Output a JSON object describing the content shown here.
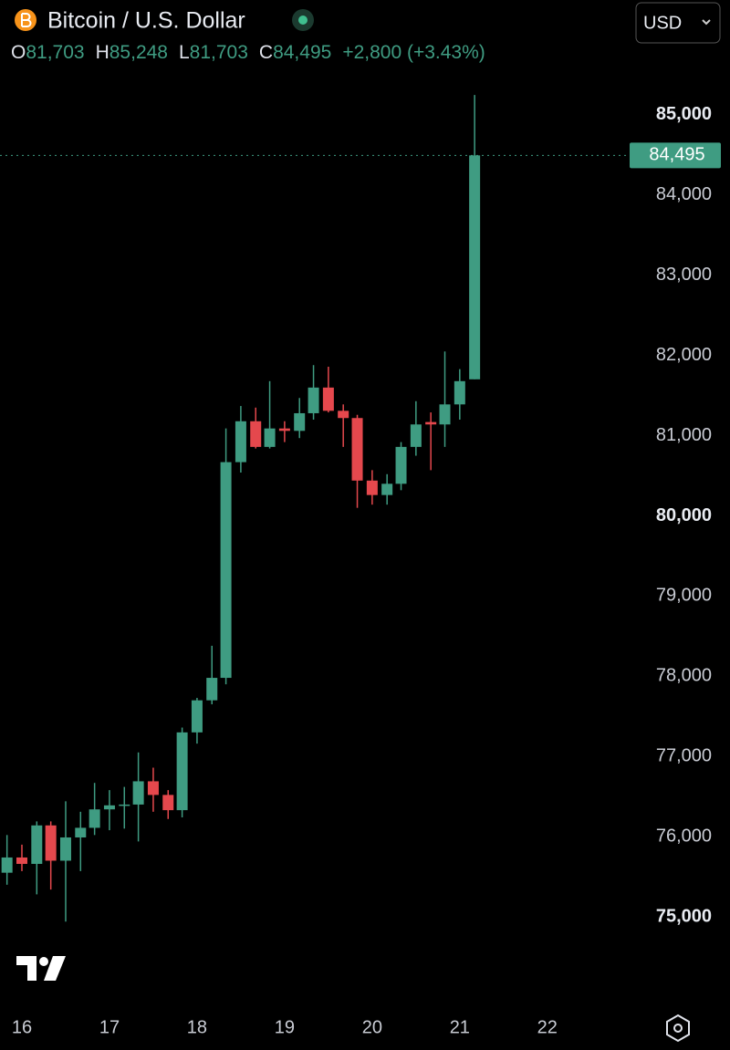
{
  "chart_data": {
    "type": "candlestick",
    "title": "Bitcoin / U.S. Dollar",
    "currency": "USD",
    "ohlc_header": [
      {
        "label": "O",
        "value": "81,703"
      },
      {
        "label": "H",
        "value": "85,248"
      },
      {
        "label": "L",
        "value": "81,703"
      },
      {
        "label": "C",
        "value": "84,495"
      }
    ],
    "change": "+2,800 (+3.43%)",
    "up_color": "#3f9c82",
    "down_color": "#e5484d",
    "x": [
      15.83,
      16,
      16.17,
      16.33,
      16.5,
      16.67,
      16.83,
      17,
      17.17,
      17.33,
      17.5,
      17.67,
      17.83,
      18,
      18.17,
      18.33,
      18.5,
      18.67,
      18.83,
      19,
      19.17,
      19.33,
      19.5,
      19.67,
      19.83,
      20,
      20.17,
      20.33,
      20.5,
      20.67,
      20.83,
      21,
      21.17
    ],
    "open": [
      75550,
      75740,
      75660,
      76140,
      75700,
      75990,
      76110,
      76340,
      76390,
      76400,
      76690,
      76520,
      76330,
      77300,
      77700,
      77980,
      80670,
      81180,
      80860,
      81090,
      81060,
      81280,
      81600,
      81310,
      81220,
      80440,
      80260,
      80400,
      80860,
      81170,
      81140,
      81390,
      81703
    ],
    "high": [
      76020,
      75900,
      76190,
      76190,
      76440,
      76310,
      76670,
      76580,
      76620,
      77050,
      76860,
      76580,
      77360,
      77730,
      78380,
      81090,
      81370,
      81350,
      81680,
      81180,
      81470,
      81880,
      81860,
      81390,
      81260,
      80570,
      80520,
      80920,
      81430,
      81290,
      82050,
      81830,
      85248
    ],
    "low": [
      75400,
      75570,
      75280,
      75340,
      74940,
      75570,
      76020,
      76080,
      76100,
      75940,
      76310,
      76220,
      76240,
      77160,
      77650,
      77900,
      80540,
      80840,
      80840,
      80920,
      80970,
      81200,
      81290,
      80860,
      80100,
      80140,
      80140,
      80320,
      80750,
      80570,
      80860,
      81200,
      81703
    ],
    "close": [
      75740,
      75660,
      76140,
      75700,
      75990,
      76110,
      76340,
      76390,
      76400,
      76690,
      76520,
      76330,
      77300,
      77700,
      77980,
      80670,
      81180,
      80860,
      81090,
      81060,
      81280,
      81600,
      81310,
      81220,
      80440,
      80260,
      80400,
      80860,
      81140,
      81140,
      81390,
      81680,
      84495
    ],
    "price_line": {
      "value": 84495,
      "label": "84,495"
    },
    "xlim": [
      15.75,
      22.94
    ],
    "xticks": [
      16,
      17,
      18,
      19,
      20,
      21,
      22
    ],
    "ylim": [
      73900,
      85350
    ],
    "yticks": [
      {
        "value": 75000,
        "label": "75,000"
      },
      {
        "value": 76000,
        "label": "76,000"
      },
      {
        "value": 77000,
        "label": "77,000"
      },
      {
        "value": 78000,
        "label": "78,000"
      },
      {
        "value": 79000,
        "label": "79,000"
      },
      {
        "value": 80000,
        "label": "80,000"
      },
      {
        "value": 81000,
        "label": "81,000"
      },
      {
        "value": 82000,
        "label": "82,000"
      },
      {
        "value": 83000,
        "label": "83,000"
      },
      {
        "value": 84000,
        "label": "84,000"
      },
      {
        "value": 85000,
        "label": "85,000"
      }
    ]
  }
}
